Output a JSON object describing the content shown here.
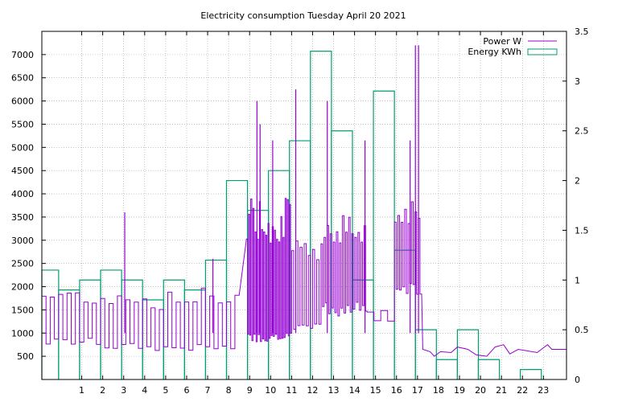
{
  "chart_data": {
    "type": "bar",
    "title": "Electricity consumption Tuesday April 20 2021",
    "xlabel": "",
    "ylabel_left": "",
    "ylabel_right": "",
    "xlim": [
      -0.9,
      24.1
    ],
    "ylim_left": [
      0,
      7500
    ],
    "ylim_right": [
      0,
      3.5
    ],
    "x_ticks": [
      1,
      2,
      3,
      4,
      5,
      6,
      7,
      8,
      9,
      10,
      11,
      12,
      13,
      14,
      15,
      16,
      17,
      18,
      19,
      20,
      21,
      22,
      23
    ],
    "y_left_ticks": [
      500,
      1000,
      1500,
      2000,
      2500,
      3000,
      3500,
      4000,
      4500,
      5000,
      5500,
      6000,
      6500,
      7000
    ],
    "y_right_ticks": [
      0,
      0.5,
      1,
      1.5,
      2,
      2.5,
      3,
      3.5
    ],
    "grid": true,
    "legend_position": "top-right",
    "colors": {
      "power": "#9400d3",
      "energy": "#009e73"
    },
    "series": [
      {
        "name": "Energy KWh",
        "kind": "histogram-steps",
        "axis": "right",
        "x": [
          -0.9,
          -0.1,
          0.9,
          1.9,
          2.9,
          3.9,
          4.9,
          5.9,
          6.9,
          7.9,
          8.9,
          9.9,
          10.9,
          11.9,
          12.9,
          13.9,
          14.9,
          15.9,
          16.9,
          17.9,
          18.9,
          19.9,
          20.9,
          21.9,
          22.9
        ],
        "values": [
          1.1,
          0.9,
          1.0,
          1.1,
          1.0,
          0.8,
          1.0,
          0.9,
          1.2,
          2.0,
          1.7,
          2.1,
          2.4,
          3.3,
          2.5,
          1.0,
          2.9,
          1.3,
          0.5,
          0.2,
          0.5,
          0.2,
          0.0,
          0.1,
          0.0
        ]
      },
      {
        "name": "Power W",
        "kind": "line",
        "axis": "left",
        "segments": [
          {
            "x0": -0.9,
            "x1": 1.9,
            "base": 850,
            "peak": 2000,
            "n": 14
          },
          {
            "x0": 1.9,
            "x1": 3.9,
            "base": 750,
            "peak": 2000,
            "n": 10
          },
          {
            "x0": 3.9,
            "x1": 5.9,
            "base": 720,
            "peak": 1900,
            "n": 10
          },
          {
            "x0": 5.9,
            "x1": 8.5,
            "base": 720,
            "peak": 2000,
            "n": 13
          },
          {
            "x0": 8.85,
            "x1": 11.0,
            "base": 950,
            "peak": 4000,
            "n": 42
          },
          {
            "x0": 11.0,
            "x1": 12.4,
            "base": 1250,
            "peak": 3000,
            "n": 14
          },
          {
            "x0": 12.4,
            "x1": 14.6,
            "base": 1600,
            "peak": 3600,
            "n": 30
          },
          {
            "x0": 14.6,
            "x1": 15.9,
            "base": 1300,
            "peak": 1500,
            "n": 4
          },
          {
            "x0": 15.9,
            "x1": 17.2,
            "base": 2000,
            "peak": 4000,
            "n": 16
          }
        ],
        "spikes": [
          {
            "x": 3.05,
            "y": 3600
          },
          {
            "x": 7.25,
            "y": 2600
          },
          {
            "x": 9.35,
            "y": 6000
          },
          {
            "x": 9.5,
            "y": 5500
          },
          {
            "x": 10.1,
            "y": 5150
          },
          {
            "x": 11.2,
            "y": 6250
          },
          {
            "x": 12.7,
            "y": 6000
          },
          {
            "x": 14.5,
            "y": 5150
          },
          {
            "x": 16.65,
            "y": 5150
          },
          {
            "x": 16.9,
            "y": 7200
          },
          {
            "x": 17.05,
            "y": 7200
          }
        ],
        "tail": [
          {
            "x": 17.25,
            "y": 650
          },
          {
            "x": 17.6,
            "y": 600
          },
          {
            "x": 17.8,
            "y": 500
          },
          {
            "x": 18.1,
            "y": 600
          },
          {
            "x": 18.6,
            "y": 580
          },
          {
            "x": 18.9,
            "y": 700
          },
          {
            "x": 19.4,
            "y": 650
          },
          {
            "x": 19.8,
            "y": 530
          },
          {
            "x": 20.3,
            "y": 500
          },
          {
            "x": 20.7,
            "y": 700
          },
          {
            "x": 21.1,
            "y": 750
          },
          {
            "x": 21.4,
            "y": 550
          },
          {
            "x": 21.8,
            "y": 650
          },
          {
            "x": 22.7,
            "y": 580
          },
          {
            "x": 23.2,
            "y": 750
          },
          {
            "x": 23.4,
            "y": 650
          },
          {
            "x": 24.1,
            "y": 650
          }
        ]
      }
    ]
  }
}
